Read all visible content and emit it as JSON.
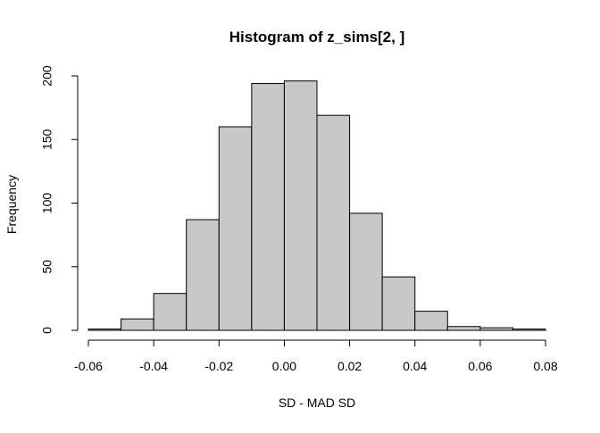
{
  "chart_data": {
    "type": "bar",
    "title": "Histogram of z_sims[2, ]",
    "xlabel": "SD - MAD SD",
    "ylabel": "Frequency",
    "bins": [
      {
        "start": -0.06,
        "end": -0.05,
        "count": 1
      },
      {
        "start": -0.05,
        "end": -0.04,
        "count": 9
      },
      {
        "start": -0.04,
        "end": -0.03,
        "count": 29
      },
      {
        "start": -0.03,
        "end": -0.02,
        "count": 87
      },
      {
        "start": -0.02,
        "end": -0.01,
        "count": 160
      },
      {
        "start": -0.01,
        "end": 0.0,
        "count": 194
      },
      {
        "start": 0.0,
        "end": 0.01,
        "count": 196
      },
      {
        "start": 0.01,
        "end": 0.02,
        "count": 169
      },
      {
        "start": 0.02,
        "end": 0.03,
        "count": 92
      },
      {
        "start": 0.03,
        "end": 0.04,
        "count": 42
      },
      {
        "start": 0.04,
        "end": 0.05,
        "count": 15
      },
      {
        "start": 0.05,
        "end": 0.06,
        "count": 3
      },
      {
        "start": 0.06,
        "end": 0.07,
        "count": 2
      },
      {
        "start": 0.07,
        "end": 0.08,
        "count": 1
      }
    ],
    "xlim": [
      -0.06,
      0.08
    ],
    "ylim": [
      0,
      200
    ],
    "x_ticks": [
      -0.06,
      -0.04,
      -0.02,
      0.0,
      0.02,
      0.04,
      0.06,
      0.08
    ],
    "x_tick_labels": [
      "-0.06",
      "-0.04",
      "-0.02",
      "0.00",
      "0.02",
      "0.04",
      "0.06",
      "0.08"
    ],
    "y_ticks": [
      0,
      50,
      100,
      150,
      200
    ],
    "y_tick_labels": [
      "0",
      "50",
      "100",
      "150",
      "200"
    ],
    "grid": false,
    "bar_fill": "#c8c8c8",
    "bar_stroke": "#000000"
  }
}
